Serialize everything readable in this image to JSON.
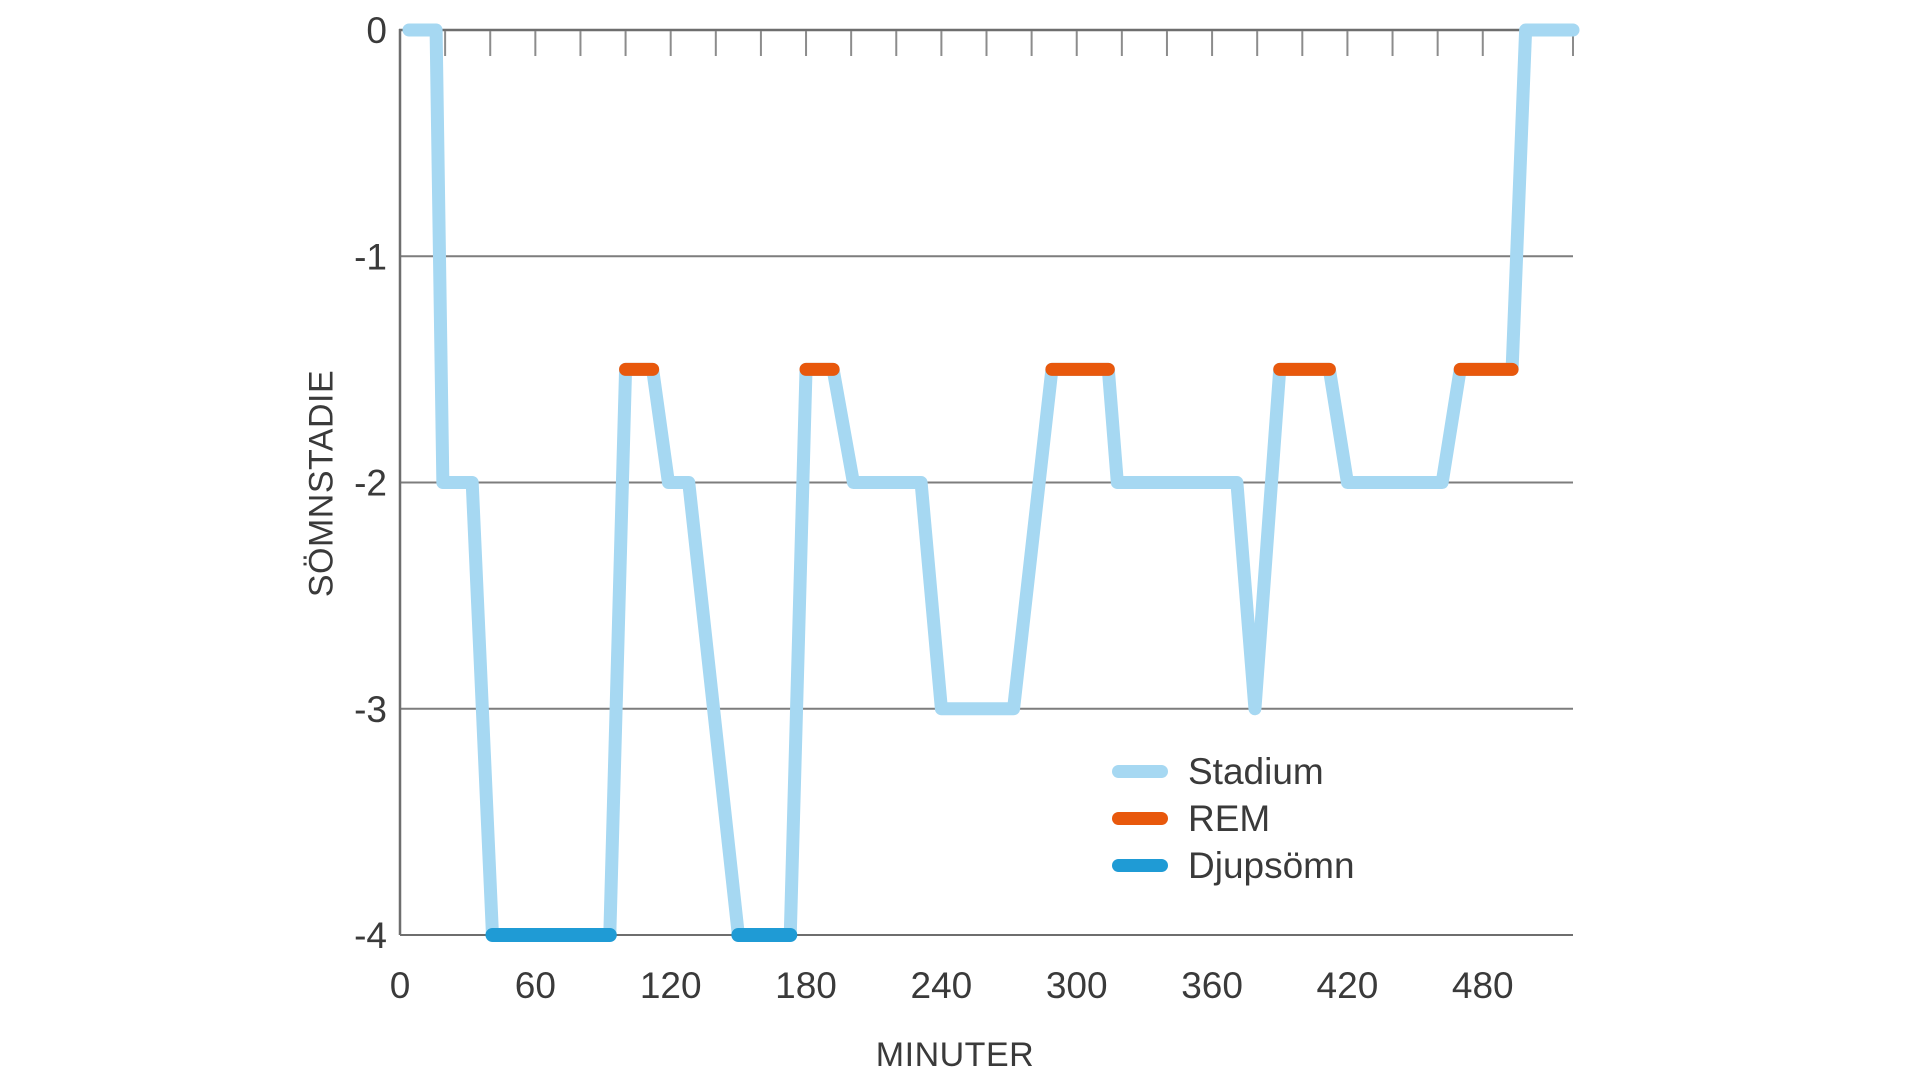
{
  "page": {
    "background": "#ffffff",
    "text_color": "#3a3a3a"
  },
  "chart_data": {
    "type": "line",
    "variant": "hypnogram-step-line",
    "title": "",
    "xlabel": "MINUTER",
    "ylabel": "SÖMNSTADIE",
    "xlim": [
      0,
      520
    ],
    "ylim": [
      -4,
      0
    ],
    "x_tick_labels": [
      0,
      60,
      120,
      180,
      240,
      300,
      360,
      420,
      480
    ],
    "x_minor_tick_step": 20,
    "y_tick_labels": [
      0,
      -1,
      -2,
      -3,
      -4
    ],
    "gridlines_y": [
      -1,
      -2,
      -3
    ],
    "grid_on": true,
    "grid_color": "#7d7d7d",
    "axis_color": "#6e6e6e",
    "tick_color": "#8c8c8c",
    "label_color": "#3a3a3a",
    "series": [
      {
        "name": "Stadium",
        "kind": "step-line",
        "color": "#a6d8f2",
        "stroke_width": 13,
        "points": [
          [
            4,
            0
          ],
          [
            16,
            0
          ],
          [
            19,
            -2
          ],
          [
            32,
            -2
          ],
          [
            41,
            -4
          ],
          [
            93,
            -4
          ],
          [
            100,
            -1.5
          ],
          [
            112,
            -1.5
          ],
          [
            119,
            -2
          ],
          [
            128,
            -2
          ],
          [
            150,
            -4
          ],
          [
            173,
            -4
          ],
          [
            180,
            -1.5
          ],
          [
            192,
            -1.5
          ],
          [
            201,
            -2
          ],
          [
            231,
            -2
          ],
          [
            240,
            -3
          ],
          [
            272,
            -3
          ],
          [
            289,
            -1.5
          ],
          [
            314,
            -1.5
          ],
          [
            318,
            -2
          ],
          [
            371,
            -2
          ],
          [
            379,
            -3
          ],
          [
            390,
            -1.5
          ],
          [
            412,
            -1.5
          ],
          [
            420,
            -2
          ],
          [
            462,
            -2
          ],
          [
            470,
            -1.5
          ],
          [
            493,
            -1.5
          ],
          [
            499,
            0
          ],
          [
            520,
            0
          ]
        ]
      },
      {
        "name": "REM",
        "kind": "segments",
        "color": "#e8580c",
        "stroke_width": 13,
        "level": -1.5,
        "segments_min": [
          [
            100,
            112
          ],
          [
            180,
            192
          ],
          [
            289,
            314
          ],
          [
            390,
            412
          ],
          [
            470,
            493
          ]
        ]
      },
      {
        "name": "Djupsömn",
        "kind": "segments",
        "color": "#1f9bd5",
        "stroke_width": 14,
        "level": -4,
        "segments_min": [
          [
            41,
            93
          ],
          [
            150,
            173
          ]
        ]
      }
    ],
    "legend": {
      "position": "inside-bottom-right",
      "items": [
        {
          "label": "Stadium",
          "color": "#a6d8f2"
        },
        {
          "label": "REM",
          "color": "#e8580c"
        },
        {
          "label": "Djupsömn",
          "color": "#1f9bd5"
        }
      ]
    }
  }
}
